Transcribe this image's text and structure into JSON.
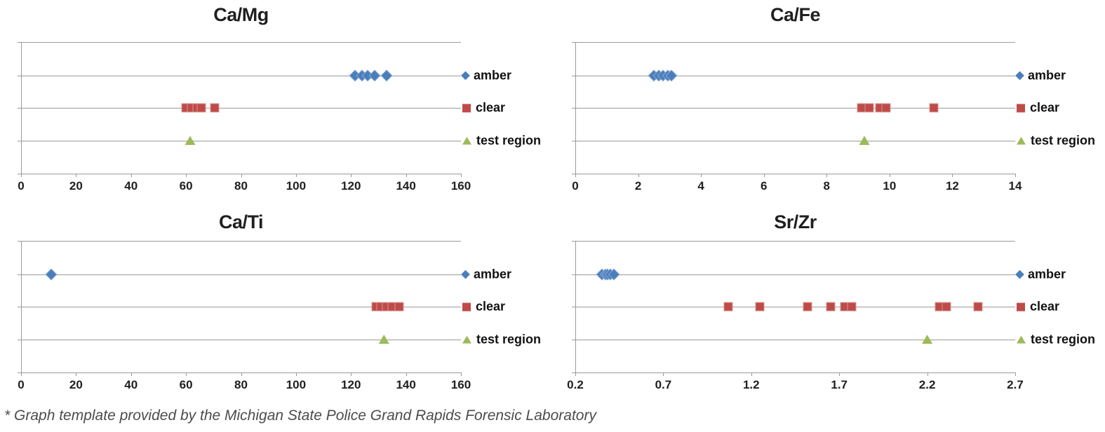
{
  "page": {
    "background": "#ffffff",
    "footnote": "* Graph template provided by the Michigan State Police Grand Rapids Forensic Laboratory"
  },
  "colors": {
    "amber": "#4A7EBB",
    "clear": "#BE4B48",
    "test_region": "#9BBB59",
    "gridline": "#9a9a9a",
    "text": "#1f1f1f"
  },
  "chart_data": [
    {
      "type": "scatter",
      "title": "Ca/Mg",
      "xlabel": "",
      "ylabel": "",
      "xlim": [
        0,
        160
      ],
      "xtick_labels": [
        "0",
        "20",
        "40",
        "60",
        "80",
        "100",
        "120",
        "140",
        "160"
      ],
      "grid": "horizontal",
      "legend_position": "right",
      "series": [
        {
          "name": "amber",
          "marker": "diamond",
          "color": "#4A7EBB",
          "values": [
            121.5,
            124,
            126,
            128.5,
            133
          ]
        },
        {
          "name": "clear",
          "marker": "square",
          "color": "#BE4B48",
          "values": [
            60,
            62,
            64,
            65.5,
            70.5
          ]
        },
        {
          "name": "test region",
          "marker": "triangle",
          "color": "#9BBB59",
          "values": [
            61.5
          ]
        }
      ]
    },
    {
      "type": "scatter",
      "title": "Ca/Fe",
      "xlabel": "",
      "ylabel": "",
      "xlim": [
        0,
        14
      ],
      "xtick_labels": [
        "0",
        "2",
        "4",
        "6",
        "8",
        "10",
        "12",
        "14"
      ],
      "grid": "horizontal",
      "legend_position": "right",
      "series": [
        {
          "name": "amber",
          "marker": "diamond",
          "color": "#4A7EBB",
          "values": [
            2.5,
            2.65,
            2.8,
            2.95,
            3.05
          ]
        },
        {
          "name": "clear",
          "marker": "square",
          "color": "#BE4B48",
          "values": [
            9.1,
            9.35,
            9.7,
            9.9,
            11.4
          ]
        },
        {
          "name": "test region",
          "marker": "triangle",
          "color": "#9BBB59",
          "values": [
            9.2
          ]
        }
      ]
    },
    {
      "type": "scatter",
      "title": "Ca/Ti",
      "xlabel": "",
      "ylabel": "",
      "xlim": [
        0,
        160
      ],
      "xtick_labels": [
        "0",
        "20",
        "40",
        "60",
        "80",
        "100",
        "120",
        "140",
        "160"
      ],
      "grid": "horizontal",
      "legend_position": "right",
      "series": [
        {
          "name": "amber",
          "marker": "diamond",
          "color": "#4A7EBB",
          "values": [
            11
          ]
        },
        {
          "name": "clear",
          "marker": "square",
          "color": "#BE4B48",
          "values": [
            129,
            131,
            133,
            135,
            137.5
          ]
        },
        {
          "name": "test region",
          "marker": "triangle",
          "color": "#9BBB59",
          "values": [
            132
          ]
        }
      ]
    },
    {
      "type": "scatter",
      "title": "Sr/Zr",
      "xlabel": "",
      "ylabel": "",
      "xlim": [
        0.2,
        2.7
      ],
      "xtick_labels": [
        "0.2",
        "0.7",
        "1.2",
        "1.7",
        "2.2",
        "2.7"
      ],
      "grid": "horizontal",
      "legend_position": "right",
      "series": [
        {
          "name": "amber",
          "marker": "diamond",
          "color": "#4A7EBB",
          "values": [
            0.35,
            0.37,
            0.385,
            0.4,
            0.42
          ]
        },
        {
          "name": "clear",
          "marker": "square",
          "color": "#BE4B48",
          "values": [
            1.07,
            1.25,
            1.52,
            1.65,
            1.73,
            1.77,
            2.27,
            2.31,
            2.49
          ]
        },
        {
          "name": "test region",
          "marker": "triangle",
          "color": "#9BBB59",
          "values": [
            2.2
          ]
        }
      ]
    }
  ]
}
